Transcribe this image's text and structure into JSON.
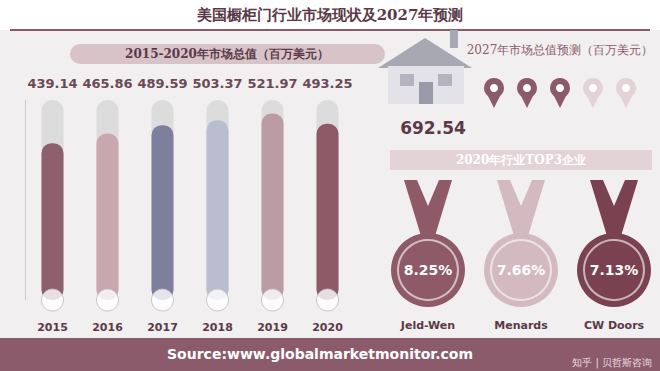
{
  "title": "美国橱柜门行业市场现状及2027年预测",
  "chart_data": {
    "type": "bar",
    "title": "2015-2020年市场总值（百万美元）",
    "categories": [
      "2015",
      "2016",
      "2017",
      "2018",
      "2019",
      "2020"
    ],
    "values": [
      439.14,
      465.86,
      489.59,
      503.37,
      521.97,
      493.25
    ],
    "colors": [
      "#8e5f6d",
      "#c9a7ae",
      "#7d7f9c",
      "#b9bdd0",
      "#bb9ca5",
      "#8e5a68"
    ],
    "ylim": [
      0,
      560
    ],
    "grid": false,
    "data_labels": true,
    "tick_labels": "x"
  },
  "forecast": {
    "title": "2027年市场总值预测（百万美元）",
    "value": 692.54
  },
  "top3": {
    "title": "2020年行业TOP3企业",
    "companies": [
      {
        "name": "Jeld-Wen",
        "value": 8.25,
        "label": "8.25%",
        "color": "#8e5a68"
      },
      {
        "name": "Menards",
        "value": 7.66,
        "label": "7.66%",
        "color": "#d3b9c0"
      },
      {
        "name": "CW Doors",
        "value": 7.13,
        "label": "7.13%",
        "color": "#7a4150"
      }
    ]
  },
  "source": "Source:www.globalmarketmonitor.com",
  "watermark": "知乎 | 贝哲斯咨询"
}
